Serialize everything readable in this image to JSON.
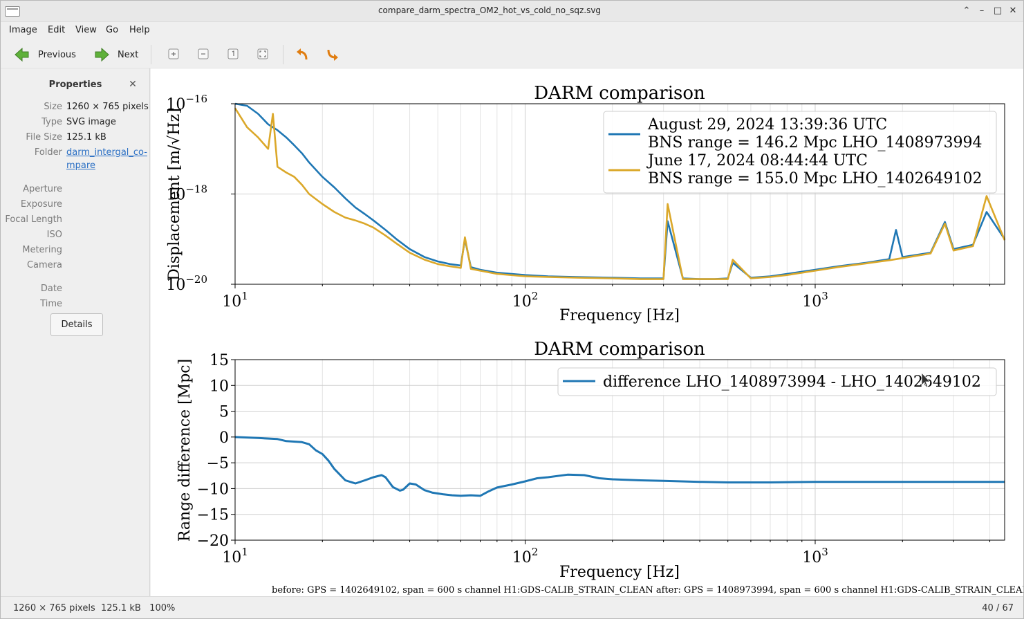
{
  "window": {
    "title": "compare_darm_spectra_OM2_hot_vs_cold_no_sqz.svg"
  },
  "menu": [
    "Image",
    "Edit",
    "View",
    "Go",
    "Help"
  ],
  "toolbar": {
    "previous_label": "Previous",
    "next_label": "Next"
  },
  "properties": {
    "title": "Properties",
    "rows": [
      {
        "label": "Size",
        "value": "1260 × 765 pixels"
      },
      {
        "label": "Type",
        "value": "SVG image"
      },
      {
        "label": "File Size",
        "value": "125.1 kB"
      },
      {
        "label": "Folder",
        "value": "darm_intergal_co-mpare"
      }
    ],
    "folder_line1": "darm_intergal_co-",
    "folder_line2": "mpare",
    "empty_labels": [
      "Aperture",
      "Exposure",
      "Focal Length",
      "ISO",
      "Metering",
      "Camera"
    ],
    "date_labels": [
      "Date",
      "Time"
    ],
    "details_label": "Details"
  },
  "status": {
    "left": "1260 × 765 pixels  125.1 kB   100%",
    "right": "40 / 67"
  },
  "colors": {
    "blue": "#1f77b4",
    "orange": "#dba82a",
    "link": "#2a6fc4"
  },
  "chart_data": [
    {
      "type": "line",
      "title": "DARM comparison",
      "xlabel": "Frequency [Hz]",
      "ylabel": "Displacement [m/√Hz]",
      "xscale": "log",
      "yscale": "log",
      "xlim": [
        10,
        4500
      ],
      "ylim": [
        1e-20,
        1e-16
      ],
      "xticks": [
        "10^1",
        "10^2",
        "10^3"
      ],
      "yticks": [
        "10^-16",
        "10^-18",
        "10^-20"
      ],
      "grid": true,
      "legend_position": "top-right",
      "series": [
        {
          "name": "August 29, 2024 13:39:36 UTC\nBNS range = 146.2 Mpc LHO_1408973994",
          "legend_line1": "August 29, 2024 13:39:36 UTC",
          "legend_line2": "BNS range = 146.2 Mpc LHO_1408973994",
          "color": "#1f77b4",
          "x": [
            10,
            11,
            12,
            13,
            14,
            15,
            16,
            17,
            18,
            20,
            22,
            24,
            26,
            28,
            30,
            33,
            36,
            40,
            45,
            50,
            55,
            60,
            62,
            65,
            70,
            80,
            100,
            120,
            150,
            200,
            250,
            300,
            310,
            350,
            400,
            450,
            500,
            520,
            600,
            700,
            800,
            1000,
            1200,
            1500,
            1800,
            1900,
            2000,
            2500,
            2800,
            3000,
            3500,
            3900,
            4500
          ],
          "y": [
            1.1e-16,
            9e-17,
            6e-17,
            3.5e-17,
            2.6e-17,
            1.8e-17,
            1.2e-17,
            8e-18,
            5e-18,
            2.4e-18,
            1.4e-18,
            8e-19,
            5e-19,
            3.6e-19,
            2.6e-19,
            1.6e-19,
            1e-19,
            6e-20,
            4e-20,
            3.2e-20,
            2.8e-20,
            2.6e-20,
            1e-19,
            2.4e-20,
            2.1e-20,
            1.8e-20,
            1.6e-20,
            1.5e-20,
            1.45e-20,
            1.4e-20,
            1.35e-20,
            1.35e-20,
            2.5e-19,
            1.35e-20,
            1.3e-20,
            1.3e-20,
            1.35e-20,
            3e-20,
            1.4e-20,
            1.5e-20,
            1.7e-20,
            2.1e-20,
            2.5e-20,
            3e-20,
            3.6e-20,
            1.6e-19,
            4e-20,
            5e-20,
            2.4e-19,
            6e-20,
            7.5e-20,
            4e-19,
            1e-19
          ]
        },
        {
          "name": "June 17, 2024 08:44:44 UTC\nBNS range = 155.0 Mpc LHO_1402649102",
          "legend_line1": "June 17, 2024 08:44:44 UTC",
          "legend_line2": "BNS range = 155.0 Mpc LHO_1402649102",
          "color": "#dba82a",
          "x": [
            10,
            11,
            12,
            13,
            13.5,
            14,
            15,
            16,
            17,
            18,
            20,
            22,
            24,
            26,
            28,
            30,
            33,
            36,
            40,
            45,
            50,
            55,
            60,
            62,
            65,
            70,
            80,
            100,
            120,
            150,
            200,
            250,
            300,
            310,
            350,
            400,
            450,
            500,
            520,
            600,
            700,
            800,
            1000,
            1200,
            1500,
            1800,
            2000,
            2500,
            2800,
            3000,
            3500,
            3900,
            4500
          ],
          "y": [
            8e-17,
            3e-17,
            1.8e-17,
            1e-17,
            6e-17,
            4e-18,
            3e-18,
            2.4e-18,
            1.6e-18,
            1e-18,
            6e-19,
            4e-19,
            3e-19,
            2.6e-19,
            2.2e-19,
            1.8e-19,
            1.2e-19,
            8e-20,
            5e-20,
            3.5e-20,
            2.8e-20,
            2.5e-20,
            2.3e-20,
            1.1e-19,
            2.2e-20,
            2e-20,
            1.7e-20,
            1.5e-20,
            1.45e-20,
            1.4e-20,
            1.35e-20,
            1.3e-20,
            1.3e-20,
            6e-19,
            1.3e-20,
            1.3e-20,
            1.3e-20,
            1.3e-20,
            3.5e-20,
            1.35e-20,
            1.45e-20,
            1.6e-20,
            2e-20,
            2.4e-20,
            2.9e-20,
            3.4e-20,
            3.8e-20,
            4.8e-20,
            2.2e-19,
            5.6e-20,
            7e-20,
            9e-19,
            9.5e-20
          ]
        }
      ]
    },
    {
      "type": "line",
      "title": "DARM comparison",
      "xlabel": "Frequency [Hz]",
      "ylabel": "Range difference [Mpc]",
      "xscale": "log",
      "xlim": [
        10,
        4500
      ],
      "ylim": [
        -20,
        15
      ],
      "yticks": [
        15,
        10,
        5,
        0,
        -5,
        -10,
        -15,
        -20
      ],
      "xticks": [
        "10^1",
        "10^2",
        "10^3"
      ],
      "grid": true,
      "legend_position": "top-right",
      "series": [
        {
          "name": "difference LHO_1408973994 - LHO_1402649102",
          "color": "#1f77b4",
          "x": [
            10,
            12,
            14,
            15,
            17,
            18,
            19,
            20,
            21,
            22,
            24,
            26,
            28,
            30,
            32,
            33,
            35,
            37,
            38,
            40,
            42,
            45,
            48,
            52,
            56,
            60,
            65,
            70,
            75,
            80,
            90,
            100,
            110,
            120,
            140,
            160,
            180,
            200,
            250,
            300,
            400,
            500,
            700,
            1000,
            1500,
            2000,
            3000,
            4500
          ],
          "y": [
            0,
            -0.2,
            -0.4,
            -0.8,
            -1.0,
            -1.4,
            -2.6,
            -3.3,
            -4.6,
            -6.2,
            -8.4,
            -9.0,
            -8.4,
            -7.8,
            -7.4,
            -7.8,
            -9.7,
            -10.4,
            -10.2,
            -9.0,
            -9.2,
            -10.3,
            -10.8,
            -11.1,
            -11.3,
            -11.4,
            -11.3,
            -11.4,
            -10.5,
            -9.8,
            -9.2,
            -8.6,
            -8.0,
            -7.8,
            -7.3,
            -7.4,
            -8.0,
            -8.2,
            -8.4,
            -8.5,
            -8.7,
            -8.8,
            -8.8,
            -8.7,
            -8.7,
            -8.7,
            -8.7,
            -8.7
          ]
        }
      ]
    }
  ],
  "footnote": "before: GPS = 1402649102, span = 600 s channel H1:GDS-CALIB_STRAIN_CLEAN after: GPS = 1408973994, span = 600 s channel H1:GDS-CALIB_STRAIN_CLEAN"
}
